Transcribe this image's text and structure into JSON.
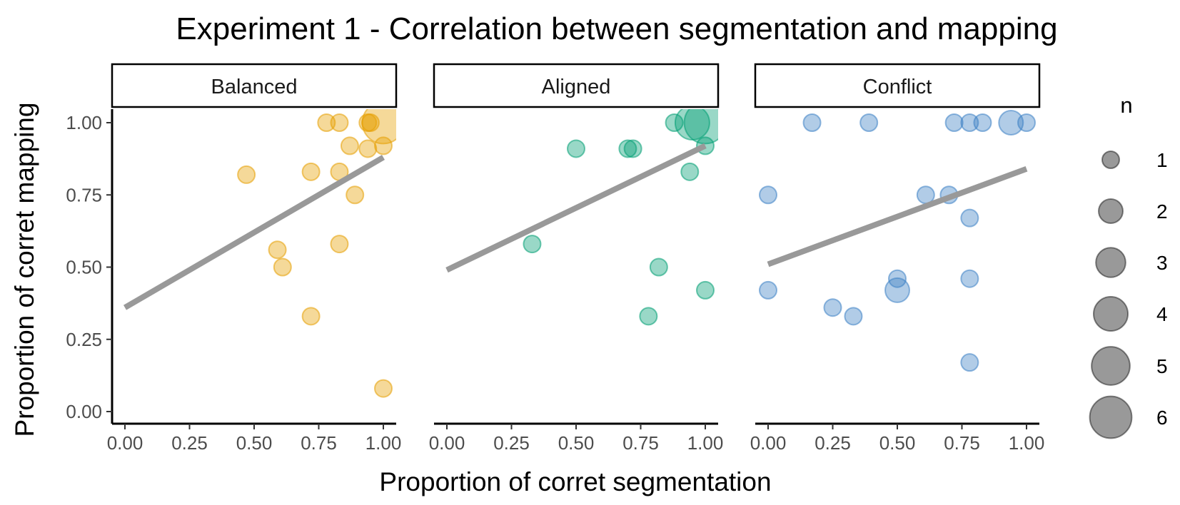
{
  "chart_data": {
    "type": "scatter",
    "title": "Experiment 1 - Correlation between segmentation and mapping",
    "xlabel": "Proportion of corret segmentation",
    "ylabel": "Proportion of corret mapping",
    "xlim": [
      0,
      1
    ],
    "ylim": [
      0,
      1
    ],
    "x_ticks": [
      "0.00",
      "0.25",
      "0.50",
      "0.75",
      "1.00"
    ],
    "y_ticks": [
      "0.00",
      "0.25",
      "0.50",
      "0.75",
      "1.00"
    ],
    "grid": false,
    "legend": {
      "title": "n",
      "position": "right",
      "entries": [
        {
          "label": "1",
          "n": 1
        },
        {
          "label": "2",
          "n": 2
        },
        {
          "label": "3",
          "n": 3
        },
        {
          "label": "4",
          "n": 4
        },
        {
          "label": "5",
          "n": 5
        },
        {
          "label": "6",
          "n": 6
        }
      ]
    },
    "panels": [
      {
        "name": "Balanced",
        "color": "#E69F00",
        "fit": {
          "x": [
            0,
            1
          ],
          "y": [
            0.36,
            0.88
          ]
        },
        "points": [
          {
            "x": 0.47,
            "y": 0.82,
            "n": 1
          },
          {
            "x": 0.59,
            "y": 0.56,
            "n": 1
          },
          {
            "x": 0.61,
            "y": 0.5,
            "n": 1
          },
          {
            "x": 0.72,
            "y": 0.83,
            "n": 1
          },
          {
            "x": 0.72,
            "y": 0.33,
            "n": 1
          },
          {
            "x": 0.78,
            "y": 1.0,
            "n": 1
          },
          {
            "x": 0.83,
            "y": 1.0,
            "n": 1
          },
          {
            "x": 0.83,
            "y": 0.83,
            "n": 1
          },
          {
            "x": 0.83,
            "y": 0.58,
            "n": 1
          },
          {
            "x": 0.87,
            "y": 0.92,
            "n": 1
          },
          {
            "x": 0.89,
            "y": 0.75,
            "n": 1
          },
          {
            "x": 0.94,
            "y": 1.0,
            "n": 1
          },
          {
            "x": 0.95,
            "y": 1.0,
            "n": 1
          },
          {
            "x": 0.94,
            "y": 0.91,
            "n": 1
          },
          {
            "x": 1.0,
            "y": 0.92,
            "n": 1
          },
          {
            "x": 1.0,
            "y": 0.08,
            "n": 1
          },
          {
            "x": 1.0,
            "y": 1.0,
            "n": 6
          }
        ]
      },
      {
        "name": "Aligned",
        "color": "#009E73",
        "fit": {
          "x": [
            0,
            1
          ],
          "y": [
            0.49,
            0.92
          ]
        },
        "points": [
          {
            "x": 0.33,
            "y": 0.58,
            "n": 1
          },
          {
            "x": 0.5,
            "y": 0.91,
            "n": 1
          },
          {
            "x": 0.7,
            "y": 0.91,
            "n": 1
          },
          {
            "x": 0.72,
            "y": 0.91,
            "n": 1
          },
          {
            "x": 0.78,
            "y": 0.33,
            "n": 1
          },
          {
            "x": 0.82,
            "y": 0.5,
            "n": 1
          },
          {
            "x": 0.88,
            "y": 1.0,
            "n": 1
          },
          {
            "x": 0.94,
            "y": 0.83,
            "n": 1
          },
          {
            "x": 0.95,
            "y": 1.0,
            "n": 4
          },
          {
            "x": 1.0,
            "y": 0.92,
            "n": 1
          },
          {
            "x": 1.0,
            "y": 0.42,
            "n": 1
          },
          {
            "x": 1.0,
            "y": 1.0,
            "n": 6
          }
        ]
      },
      {
        "name": "Conflict",
        "color": "#3B7FC4",
        "fit": {
          "x": [
            0,
            1
          ],
          "y": [
            0.51,
            0.84
          ]
        },
        "points": [
          {
            "x": 0.0,
            "y": 0.75,
            "n": 1
          },
          {
            "x": 0.0,
            "y": 0.42,
            "n": 1
          },
          {
            "x": 0.17,
            "y": 1.0,
            "n": 1
          },
          {
            "x": 0.25,
            "y": 0.36,
            "n": 1
          },
          {
            "x": 0.33,
            "y": 0.33,
            "n": 1
          },
          {
            "x": 0.39,
            "y": 1.0,
            "n": 1
          },
          {
            "x": 0.5,
            "y": 0.46,
            "n": 1
          },
          {
            "x": 0.5,
            "y": 0.42,
            "n": 2
          },
          {
            "x": 0.61,
            "y": 0.75,
            "n": 1
          },
          {
            "x": 0.7,
            "y": 0.75,
            "n": 1
          },
          {
            "x": 0.72,
            "y": 1.0,
            "n": 1
          },
          {
            "x": 0.78,
            "y": 1.0,
            "n": 1
          },
          {
            "x": 0.78,
            "y": 0.67,
            "n": 1
          },
          {
            "x": 0.78,
            "y": 0.46,
            "n": 1
          },
          {
            "x": 0.78,
            "y": 0.17,
            "n": 1
          },
          {
            "x": 0.83,
            "y": 1.0,
            "n": 1
          },
          {
            "x": 0.94,
            "y": 1.0,
            "n": 2
          },
          {
            "x": 1.0,
            "y": 1.0,
            "n": 1
          }
        ]
      }
    ]
  }
}
